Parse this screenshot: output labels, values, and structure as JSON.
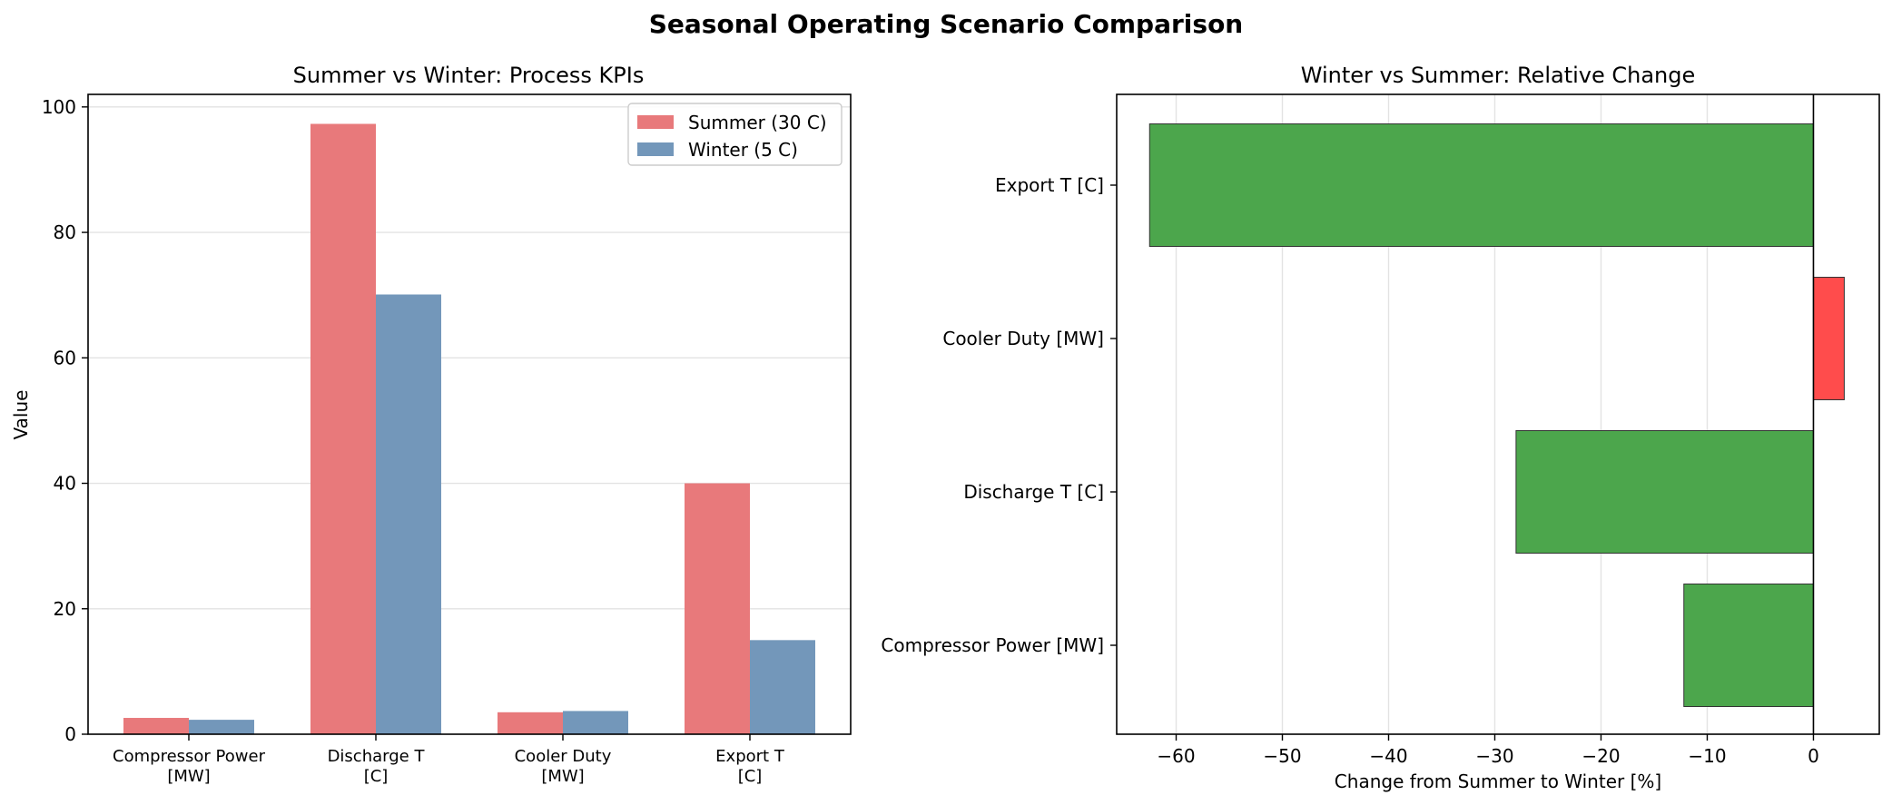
{
  "figure": {
    "title": "Seasonal Operating Scenario Comparison"
  },
  "chart_data": [
    {
      "type": "bar",
      "title": "Summer vs Winter: Process KPIs",
      "xlabel": "",
      "ylabel": "Value",
      "ylim": [
        0,
        102
      ],
      "yticks": [
        0,
        20,
        40,
        60,
        80,
        100
      ],
      "categories": [
        "Compressor Power [MW]",
        "Discharge T [C]",
        "Cooler Duty [MW]",
        "Export T [C]"
      ],
      "category_tick_lines": [
        [
          "Compressor Power",
          "[MW]"
        ],
        [
          "Discharge T",
          "[C]"
        ],
        [
          "Cooler Duty",
          "[MW]"
        ],
        [
          "Export T",
          "[C]"
        ]
      ],
      "series": [
        {
          "name": "Summer (30 C)",
          "values": [
            2.6,
            97.3,
            3.5,
            40.0
          ],
          "color": "#e8797b"
        },
        {
          "name": "Winter (5 C)",
          "values": [
            2.3,
            70.1,
            3.7,
            15.0
          ],
          "color": "#7397ba"
        }
      ],
      "grid": "y",
      "legend_position": "upper right"
    },
    {
      "type": "bar",
      "orientation": "horizontal",
      "title": "Winter vs Summer: Relative Change",
      "xlabel": "Change from Summer to Winter [%]",
      "ylabel": "",
      "xlim": [
        -65.6,
        6.2
      ],
      "xticks": [
        -60,
        -50,
        -40,
        -30,
        -20,
        -10,
        0
      ],
      "xtick_labels": [
        "−60",
        "−50",
        "−40",
        "−30",
        "−20",
        "−10",
        "0"
      ],
      "categories": [
        "Compressor Power [MW]",
        "Discharge T [C]",
        "Cooler Duty [MW]",
        "Export T [C]"
      ],
      "values": [
        -12.2,
        -28.0,
        2.9,
        -62.5
      ],
      "colors": {
        "negative": "#4ca64c",
        "positive": "#ff4c4c"
      },
      "grid": "x"
    }
  ]
}
